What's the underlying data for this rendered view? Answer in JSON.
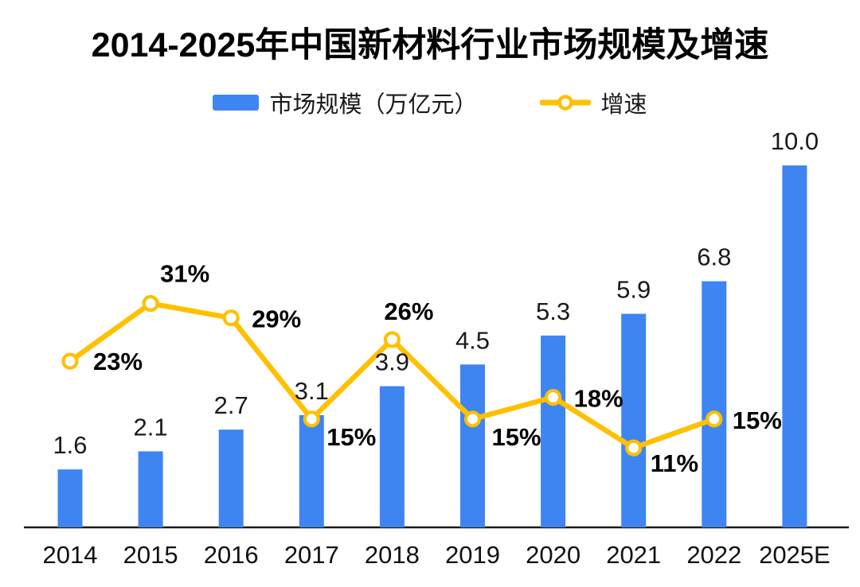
{
  "title": "2014-2025年中国新材料行业市场规模及增速",
  "legend": [
    {
      "label": "市场规模（万亿元）",
      "type": "bar"
    },
    {
      "label": "增速",
      "type": "line"
    }
  ],
  "colors": {
    "bar": "#3E85F2",
    "line": "#FFC000",
    "marker_fill": "#FFFFFF",
    "axis": "#1a1a1a",
    "label_text": "#1a1a1a"
  },
  "chart_data": {
    "type": "bar",
    "title": "2014-2025年中国新材料行业市场规模及增速",
    "categories": [
      "2014",
      "2015",
      "2016",
      "2017",
      "2018",
      "2019",
      "2020",
      "2021",
      "2022",
      "2025E"
    ],
    "series": [
      {
        "name": "市场规模（万亿元）",
        "type": "bar",
        "axis": "left",
        "values": [
          1.6,
          2.1,
          2.7,
          3.1,
          3.9,
          4.5,
          5.3,
          5.9,
          6.8,
          10.0
        ],
        "labels": [
          "1.6",
          "2.1",
          "2.7",
          "3.1",
          "3.9",
          "4.5",
          "5.3",
          "5.9",
          "6.8",
          "10.0"
        ]
      },
      {
        "name": "增速",
        "type": "line",
        "axis": "right",
        "values": [
          23,
          31,
          29,
          15,
          26,
          15,
          18,
          11,
          15,
          null
        ],
        "labels": [
          "23%",
          "31%",
          "29%",
          "15%",
          "26%",
          "15%",
          "18%",
          "11%",
          "15%",
          ""
        ]
      }
    ],
    "xlabel": "",
    "ylabel_left": "市场规模（万亿元）",
    "ylabel_right": "增速",
    "ylim_left": [
      0,
      11
    ],
    "ylim_right_percent": [
      0,
      50
    ],
    "grid": false,
    "legend_position": "top",
    "y_axis_visible": false
  }
}
